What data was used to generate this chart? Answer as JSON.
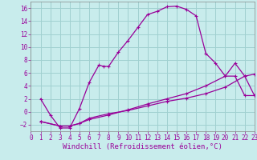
{
  "xlabel": "Windchill (Refroidissement éolien,°C)",
  "background_color": "#c8ecec",
  "grid_color": "#a0d0d0",
  "line_color": "#990099",
  "spine_color": "#888888",
  "xlim": [
    0,
    23
  ],
  "ylim": [
    -3,
    17
  ],
  "xticks": [
    0,
    1,
    2,
    3,
    4,
    5,
    6,
    7,
    8,
    9,
    10,
    11,
    12,
    13,
    14,
    15,
    16,
    17,
    18,
    19,
    20,
    21,
    22,
    23
  ],
  "yticks": [
    -2,
    0,
    2,
    4,
    6,
    8,
    10,
    12,
    14,
    16
  ],
  "curve1_x": [
    1,
    2,
    3,
    4,
    5,
    6,
    7,
    7.5,
    8,
    9,
    10,
    11,
    12,
    13,
    14,
    15,
    16,
    17,
    18,
    19,
    20,
    21,
    22,
    23
  ],
  "curve1_y": [
    2,
    -0.5,
    -2.5,
    -2.5,
    0.5,
    4.5,
    7.2,
    7.0,
    7.0,
    9.2,
    11.0,
    13.0,
    15.0,
    15.5,
    16.2,
    16.3,
    15.8,
    14.8,
    9.0,
    7.5,
    5.5,
    5.5,
    2.5,
    2.5
  ],
  "curve2_x": [
    1,
    3,
    4,
    5,
    6,
    8,
    10,
    12,
    14,
    16,
    18,
    20,
    21,
    22,
    23
  ],
  "curve2_y": [
    -1.5,
    -2.2,
    -2.2,
    -1.8,
    -1.2,
    -0.5,
    0.3,
    1.2,
    2.0,
    2.8,
    4.0,
    5.5,
    7.5,
    5.5,
    2.5
  ],
  "curve3_x": [
    1,
    3,
    4,
    5,
    6,
    8,
    10,
    12,
    14,
    16,
    18,
    20,
    22,
    23
  ],
  "curve3_y": [
    -1.5,
    -2.2,
    -2.2,
    -1.8,
    -1.0,
    -0.3,
    0.2,
    0.9,
    1.6,
    2.1,
    2.8,
    3.8,
    5.5,
    5.8
  ],
  "tick_color": "#990099",
  "tick_fontsize": 5.5,
  "xlabel_fontsize": 6.5
}
